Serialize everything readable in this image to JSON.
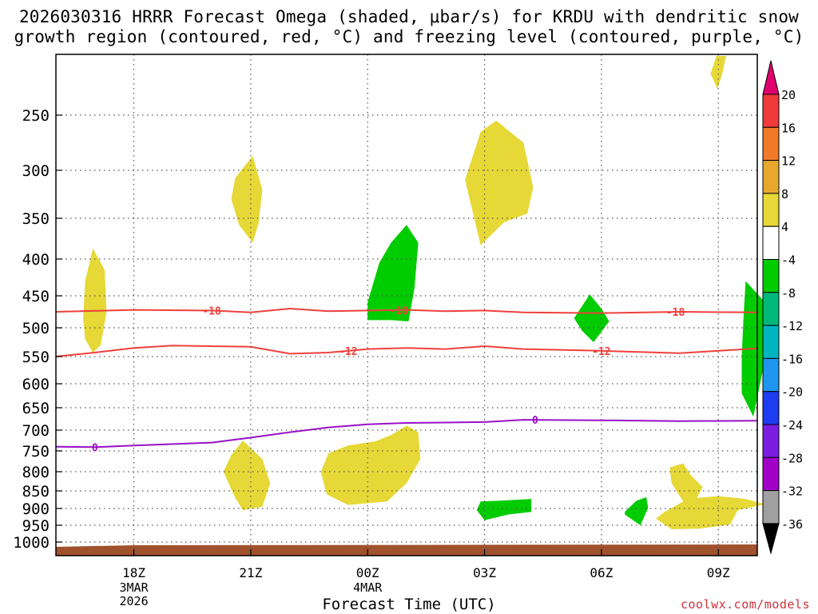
{
  "title_line1": "2026030316 HRRR Forecast Omega (shaded, μbar/s) for KRDU with dendritic snow",
  "title_line2": "growth region (contoured, red, °C) and freezing level (contoured, purple, °C)",
  "credit": "coolwx.com/models",
  "chart_data": {
    "type": "contour-cross-section",
    "xlabel": "Forecast Time (UTC)",
    "x_ticks": [
      {
        "hour": 2,
        "label": "18Z",
        "sub1": "3MAR",
        "sub2": "2026"
      },
      {
        "hour": 5,
        "label": "21Z"
      },
      {
        "hour": 8,
        "label": "00Z",
        "sub1": "4MAR"
      },
      {
        "hour": 11,
        "label": "03Z"
      },
      {
        "hour": 14,
        "label": "06Z"
      },
      {
        "hour": 17,
        "label": "09Z"
      }
    ],
    "x_range_hours": [
      0,
      18
    ],
    "y_axis": "pressure (mb)",
    "y_ticks": [
      250,
      300,
      350,
      400,
      450,
      500,
      550,
      600,
      650,
      700,
      750,
      800,
      850,
      900,
      950,
      1000
    ],
    "y_range": [
      200,
      1020
    ],
    "colorbar": {
      "labels": [
        "20",
        "16",
        "12",
        "8",
        "4",
        "-4",
        "-8",
        "-12",
        "-16",
        "-20",
        "-24",
        "-28",
        "-32",
        "-36"
      ],
      "colors": [
        "#e0006e",
        "#f03a3a",
        "#f07a28",
        "#e8a830",
        "#e6d836",
        "#ffffff",
        "#00cc00",
        "#00b87a",
        "#00b4c0",
        "#1e96f0",
        "#1e3cf0",
        "#7a1ee0",
        "#a000c8",
        "#a0a0a0",
        "#000000"
      ]
    },
    "contours": [
      {
        "name": "-18",
        "color": "#f0403c",
        "labels": [
          "-18",
          "-18",
          "-18"
        ],
        "points": [
          [
            0,
            475
          ],
          [
            2,
            472
          ],
          [
            4,
            473
          ],
          [
            5,
            476
          ],
          [
            6,
            470
          ],
          [
            7,
            474
          ],
          [
            8,
            473
          ],
          [
            9,
            472
          ],
          [
            10,
            474
          ],
          [
            11,
            473
          ],
          [
            12,
            476
          ],
          [
            14,
            477
          ],
          [
            16,
            475
          ],
          [
            18,
            476
          ]
        ]
      },
      {
        "name": "-12",
        "color": "#f0403c",
        "labels": [
          "-12",
          "-12"
        ],
        "points": [
          [
            0,
            550
          ],
          [
            1,
            543
          ],
          [
            2,
            535
          ],
          [
            3,
            531
          ],
          [
            5,
            533
          ],
          [
            6,
            545
          ],
          [
            7,
            543
          ],
          [
            8,
            537
          ],
          [
            9,
            535
          ],
          [
            10,
            537
          ],
          [
            11,
            532
          ],
          [
            12,
            537
          ],
          [
            14,
            540
          ],
          [
            16,
            544
          ],
          [
            18,
            536
          ]
        ]
      },
      {
        "name": "0",
        "color": "#9a10c8",
        "labels": [
          "0",
          "0"
        ],
        "points": [
          [
            0,
            740
          ],
          [
            1,
            741
          ],
          [
            2,
            737
          ],
          [
            4,
            730
          ],
          [
            5,
            718
          ],
          [
            6,
            705
          ],
          [
            7,
            694
          ],
          [
            8,
            687
          ],
          [
            9,
            684
          ],
          [
            10,
            683
          ],
          [
            11,
            682
          ],
          [
            12,
            677
          ],
          [
            14,
            678
          ],
          [
            16,
            680
          ],
          [
            18,
            679
          ]
        ]
      }
    ],
    "omega_features": [
      {
        "category": "4 to 8",
        "color": "#e6d836",
        "points": [
          [
            16.8,
            215
          ],
          [
            16.95,
            200
          ],
          [
            17.2,
            200
          ],
          [
            17.1,
            215
          ],
          [
            16.98,
            228
          ]
        ]
      },
      {
        "category": "4 to 8",
        "color": "#e6d836",
        "points": [
          [
            4.5,
            330
          ],
          [
            4.6,
            308
          ],
          [
            5.05,
            287
          ],
          [
            5.3,
            320
          ],
          [
            5.2,
            357
          ],
          [
            5.05,
            380
          ],
          [
            4.7,
            358
          ]
        ]
      },
      {
        "category": "4 to 8",
        "color": "#e6d836",
        "points": [
          [
            10.5,
            310
          ],
          [
            10.9,
            265
          ],
          [
            11.3,
            255
          ],
          [
            12.0,
            275
          ],
          [
            12.25,
            318
          ],
          [
            12.1,
            345
          ],
          [
            11.5,
            355
          ],
          [
            10.9,
            383
          ]
        ]
      },
      {
        "category": "4 to 8",
        "color": "#e6d836",
        "points": [
          [
            0.7,
            485
          ],
          [
            0.75,
            430
          ],
          [
            0.95,
            387
          ],
          [
            1.25,
            415
          ],
          [
            1.3,
            475
          ],
          [
            1.15,
            530
          ],
          [
            0.95,
            543
          ],
          [
            0.75,
            520
          ]
        ]
      },
      {
        "category": "-4 to -8",
        "color": "#00cc00",
        "points": [
          [
            8.0,
            460
          ],
          [
            8.3,
            405
          ],
          [
            8.6,
            380
          ],
          [
            9.0,
            358
          ],
          [
            9.3,
            380
          ],
          [
            9.2,
            440
          ],
          [
            9.05,
            490
          ],
          [
            8.6,
            488
          ],
          [
            8.0,
            488
          ]
        ]
      },
      {
        "category": "-4 to -8",
        "color": "#00cc00",
        "points": [
          [
            13.3,
            485
          ],
          [
            13.7,
            448
          ],
          [
            14.0,
            470
          ],
          [
            14.2,
            490
          ],
          [
            13.8,
            525
          ],
          [
            13.5,
            505
          ]
        ]
      },
      {
        "category": "-4 to -8",
        "color": "#00cc00",
        "points": [
          [
            17.7,
            430
          ],
          [
            18.2,
            460
          ],
          [
            18.3,
            520
          ],
          [
            18.1,
            590
          ],
          [
            17.9,
            670
          ],
          [
            17.6,
            620
          ],
          [
            17.6,
            550
          ],
          [
            17.65,
            480
          ]
        ]
      },
      {
        "category": "4 to 8",
        "color": "#e6d836",
        "points": [
          [
            4.3,
            800
          ],
          [
            4.5,
            760
          ],
          [
            4.8,
            725
          ],
          [
            5.3,
            770
          ],
          [
            5.5,
            830
          ],
          [
            5.3,
            895
          ],
          [
            4.8,
            905
          ],
          [
            4.6,
            870
          ]
        ]
      },
      {
        "category": "4 to 8",
        "color": "#e6d836",
        "points": [
          [
            6.8,
            800
          ],
          [
            7.0,
            755
          ],
          [
            7.5,
            737
          ],
          [
            8.2,
            727
          ],
          [
            8.6,
            712
          ],
          [
            9.0,
            690
          ],
          [
            9.3,
            705
          ],
          [
            9.35,
            770
          ],
          [
            9.0,
            830
          ],
          [
            8.5,
            880
          ],
          [
            7.5,
            890
          ],
          [
            6.95,
            860
          ]
        ]
      },
      {
        "category": "-4 to -8",
        "color": "#00cc00",
        "points": [
          [
            10.9,
            880
          ],
          [
            11.4,
            878
          ],
          [
            12.2,
            873
          ],
          [
            12.2,
            910
          ],
          [
            11.6,
            918
          ],
          [
            11.0,
            935
          ],
          [
            10.8,
            905
          ]
        ]
      },
      {
        "category": "-4 to -8",
        "color": "#00cc00",
        "points": [
          [
            14.6,
            910
          ],
          [
            14.9,
            878
          ],
          [
            15.15,
            868
          ],
          [
            15.2,
            898
          ],
          [
            15.0,
            950
          ],
          [
            14.6,
            918
          ]
        ]
      },
      {
        "category": "4 to 8",
        "color": "#e6d836",
        "points": [
          [
            15.75,
            790
          ],
          [
            16.1,
            780
          ],
          [
            16.3,
            810
          ],
          [
            16.6,
            840
          ],
          [
            16.45,
            870
          ],
          [
            17.0,
            865
          ],
          [
            17.7,
            873
          ],
          [
            18.2,
            888
          ],
          [
            17.5,
            905
          ],
          [
            17.3,
            948
          ],
          [
            16.5,
            960
          ],
          [
            15.8,
            962
          ],
          [
            15.4,
            930
          ],
          [
            15.6,
            912
          ],
          [
            16.1,
            880
          ],
          [
            15.8,
            830
          ]
        ]
      }
    ]
  }
}
